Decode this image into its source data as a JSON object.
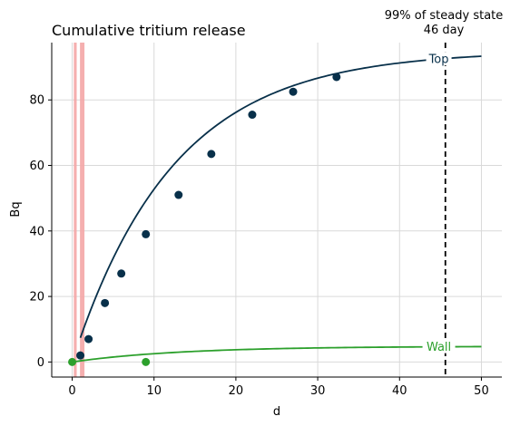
{
  "chart_data": {
    "type": "line",
    "title": "Cumulative tritium release",
    "xlabel": "d",
    "ylabel": "Bq",
    "xlim": [
      -2.5,
      52.5
    ],
    "ylim": [
      -4.6,
      97.5
    ],
    "x_ticks": [
      0,
      10,
      20,
      30,
      40,
      50
    ],
    "y_ticks": [
      0,
      20,
      40,
      60,
      80
    ],
    "grid": true,
    "shaded_bands": [
      {
        "x_start": 0.2,
        "x_end": 0.55,
        "color": "#f4a6a6"
      },
      {
        "x_start": 0.95,
        "x_end": 1.5,
        "color": "#f4a6a6"
      }
    ],
    "vertical_line": {
      "x": 45.6,
      "style": "dashed",
      "color": "#000000",
      "label_line1": "99% of steady state",
      "label_line2": "46 day"
    },
    "series": [
      {
        "name": "Top",
        "color": "#08304a",
        "curve": {
          "asymptote": 95.0,
          "rate": 0.081,
          "x_range": [
            1,
            50
          ]
        },
        "points": [
          {
            "x": 1,
            "y": 2
          },
          {
            "x": 2,
            "y": 7
          },
          {
            "x": 4,
            "y": 18
          },
          {
            "x": 6,
            "y": 27
          },
          {
            "x": 9,
            "y": 39
          },
          {
            "x": 13,
            "y": 51
          },
          {
            "x": 17,
            "y": 63.5
          },
          {
            "x": 22,
            "y": 75.5
          },
          {
            "x": 27,
            "y": 82.5
          },
          {
            "x": 32.3,
            "y": 87
          }
        ]
      },
      {
        "name": "Wall",
        "color": "#2ca02c",
        "curve": {
          "asymptote": 4.8,
          "rate": 0.075,
          "x_range": [
            0,
            50
          ]
        },
        "points": [
          {
            "x": 0,
            "y": 0
          },
          {
            "x": 9,
            "y": 0
          }
        ]
      }
    ]
  }
}
